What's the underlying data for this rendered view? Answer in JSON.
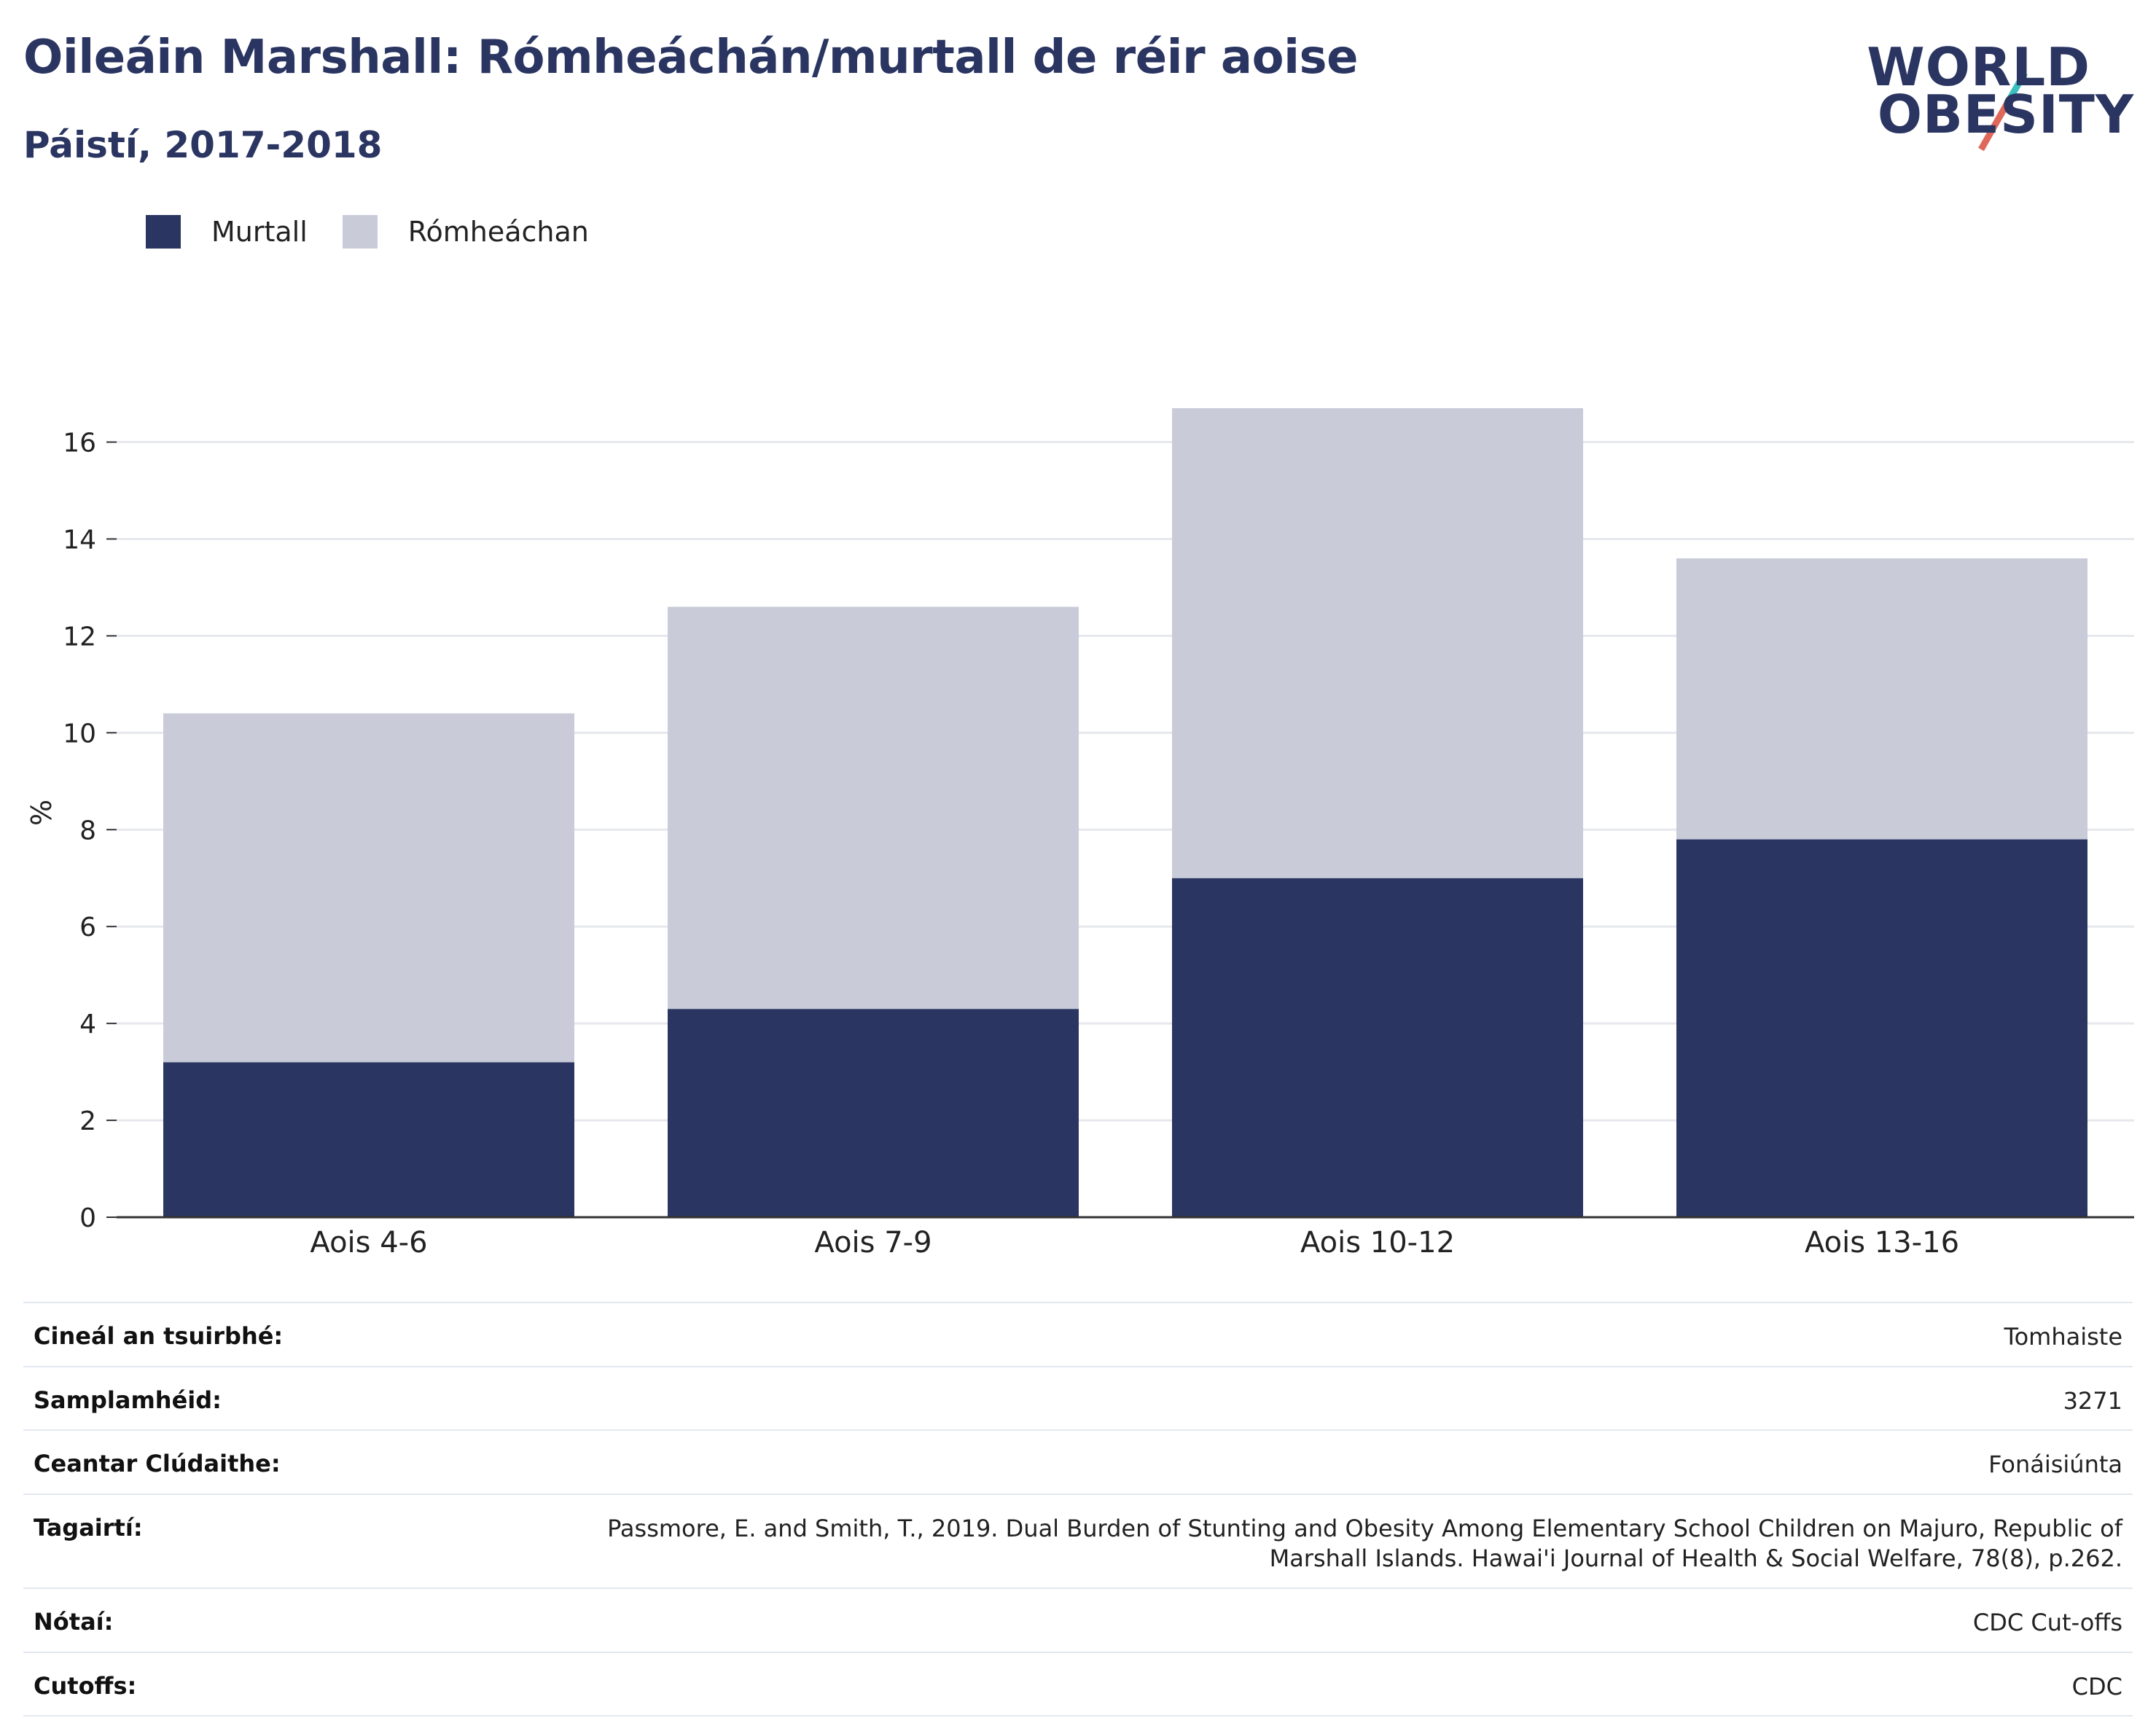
{
  "header": {
    "title": "Oileáin Marshall: Rómheáchán/murtall de réir aoise",
    "subtitle": "Páistí, 2017-2018"
  },
  "logo": {
    "line1": "WORLD",
    "line2": "OBESITY",
    "slash_color_top": "#3bbfbf",
    "slash_color_bottom": "#e0685a"
  },
  "legend": {
    "items": [
      {
        "label": "Murtall",
        "color": "#2a3561"
      },
      {
        "label": "Rómheáchan",
        "color": "#c9ccd8"
      }
    ]
  },
  "chart_data": {
    "type": "bar",
    "stacked": true,
    "categories": [
      "Aois 4-6",
      "Aois 7-9",
      "Aois 10-12",
      "Aois 13-16"
    ],
    "series": [
      {
        "name": "Murtall",
        "values": [
          3.2,
          4.3,
          7.0,
          7.8
        ],
        "color": "#2a3561"
      },
      {
        "name": "Rómheáchan",
        "values": [
          7.2,
          8.3,
          9.7,
          5.8
        ],
        "color": "#c9ccd8"
      }
    ],
    "ylabel": "%",
    "xlabel": "",
    "ylim": [
      0,
      16.7
    ],
    "yticks": [
      0,
      2,
      4,
      6,
      8,
      10,
      12,
      14,
      16
    ],
    "grid": true,
    "legend_position": "top-left"
  },
  "info_table": {
    "rows": [
      {
        "label": "Cineál an tsuirbhé:",
        "value": "Tomhaiste"
      },
      {
        "label": "Samplamhéid:",
        "value": "3271"
      },
      {
        "label": "Ceantar Clúdaithe:",
        "value": "Fonáisiúnta"
      },
      {
        "label": "Tagairtí:",
        "value": "Passmore, E. and Smith, T., 2019. Dual Burden of Stunting and Obesity Among Elementary School Children on Majuro, Republic of Marshall Islands. Hawai'i Journal of Health & Social Welfare, 78(8), p.262."
      },
      {
        "label": "Nótaí:",
        "value": "CDC Cut-offs"
      },
      {
        "label": "Cutoffs:",
        "value": "CDC"
      }
    ]
  }
}
